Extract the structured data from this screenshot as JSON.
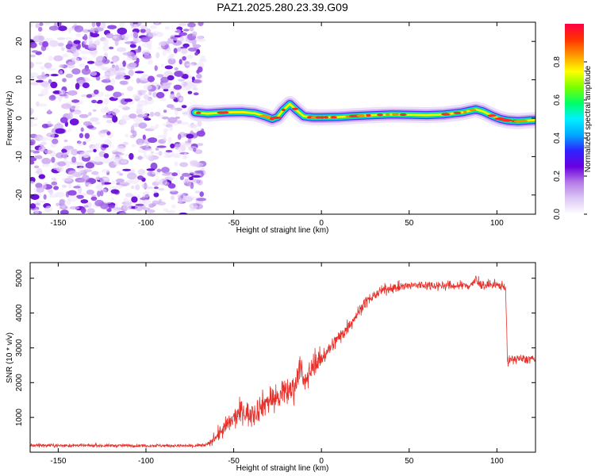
{
  "title": "PAZ1.2025.280.23.39.G09",
  "colors": {
    "snr_line": "#e8302a",
    "noise_dots": "#8a2be2",
    "frame": "#000000"
  },
  "chart_data": [
    {
      "type": "heatmap",
      "title": "PAZ1.2025.280.23.39.G09",
      "xlabel": "Height of straight line (km)",
      "ylabel": "Frequency (Hz)",
      "xlim": [
        -166,
        122
      ],
      "ylim": [
        -25,
        25
      ],
      "xticks": [
        -150,
        -100,
        -50,
        0,
        50,
        100
      ],
      "yticks": [
        -20,
        -10,
        0,
        10,
        20
      ],
      "noise_region_x": [
        -166,
        -70
      ],
      "ridge_track": {
        "x": [
          -72,
          -65,
          -55,
          -45,
          -38,
          -32,
          -28,
          -25,
          -22,
          -18,
          -14,
          -10,
          -5,
          0,
          10,
          20,
          30,
          40,
          50,
          60,
          70,
          80,
          88,
          92,
          98,
          102,
          106,
          112,
          118,
          122
        ],
        "freq_hz": [
          1.5,
          1.2,
          1.5,
          1.6,
          1.3,
          0.5,
          -0.2,
          0.3,
          2.0,
          3.7,
          2.0,
          0.5,
          0.2,
          0.2,
          0.3,
          0.6,
          0.8,
          1.0,
          0.9,
          0.8,
          1.0,
          1.5,
          2.3,
          1.8,
          0.5,
          -0.2,
          -0.6,
          -0.8,
          -0.6,
          -0.5
        ]
      },
      "colorbar": {
        "label": "Normalized spectral amplitude",
        "range": [
          0,
          1
        ],
        "ticks": [
          "0.0",
          "0.2",
          "0.4",
          "0.6",
          "0.8"
        ],
        "tick_values": [
          0.0,
          0.2,
          0.4,
          0.6,
          0.8
        ],
        "colormap": [
          "#ffffff",
          "#dcc8f5",
          "#b57be6",
          "#6a00e0",
          "#2f22ff",
          "#00a8ff",
          "#00f0ff",
          "#00ff66",
          "#7aff00",
          "#ffff00",
          "#ff9900",
          "#ff3300",
          "#ff0044"
        ]
      }
    },
    {
      "type": "line",
      "xlabel": "Height of straight line (km)",
      "ylabel": "SNR (10 * v/v)",
      "xlim": [
        -166,
        122
      ],
      "ylim": [
        0,
        5450
      ],
      "xticks": [
        -150,
        -100,
        -50,
        0,
        50,
        100
      ],
      "yticks": [
        1000,
        2000,
        3000,
        4000,
        5000
      ],
      "series": [
        {
          "name": "SNR",
          "x": [
            -166,
            -150,
            -120,
            -90,
            -75,
            -66,
            -64,
            -60,
            -55,
            -50,
            -45,
            -40,
            -35,
            -30,
            -25,
            -20,
            -15,
            -12,
            -10,
            -5,
            0,
            5,
            10,
            15,
            20,
            25,
            30,
            35,
            40,
            45,
            50,
            55,
            60,
            65,
            70,
            75,
            80,
            85,
            88,
            90,
            95,
            100,
            104,
            105,
            106,
            108,
            112,
            116,
            120,
            122
          ],
          "y": [
            200,
            190,
            190,
            190,
            180,
            200,
            250,
            450,
            700,
            950,
            1200,
            1050,
            1300,
            1500,
            1550,
            1700,
            1900,
            2600,
            1900,
            2500,
            2700,
            3000,
            3300,
            3600,
            3950,
            4300,
            4500,
            4650,
            4720,
            4750,
            4780,
            4800,
            4800,
            4800,
            4790,
            4780,
            4790,
            4800,
            4950,
            4820,
            4800,
            4790,
            4790,
            4700,
            2600,
            2650,
            2700,
            2650,
            2700,
            2650
          ],
          "noise_amplitude": [
            60,
            50,
            50,
            50,
            50,
            60,
            80,
            200,
            300,
            350,
            380,
            400,
            420,
            450,
            450,
            450,
            450,
            450,
            400,
            350,
            300,
            250,
            250,
            250,
            200,
            180,
            160,
            150,
            150,
            150,
            150,
            150,
            150,
            150,
            150,
            150,
            150,
            150,
            180,
            150,
            150,
            150,
            150,
            150,
            150,
            150,
            150,
            150,
            150,
            150
          ]
        }
      ]
    }
  ]
}
